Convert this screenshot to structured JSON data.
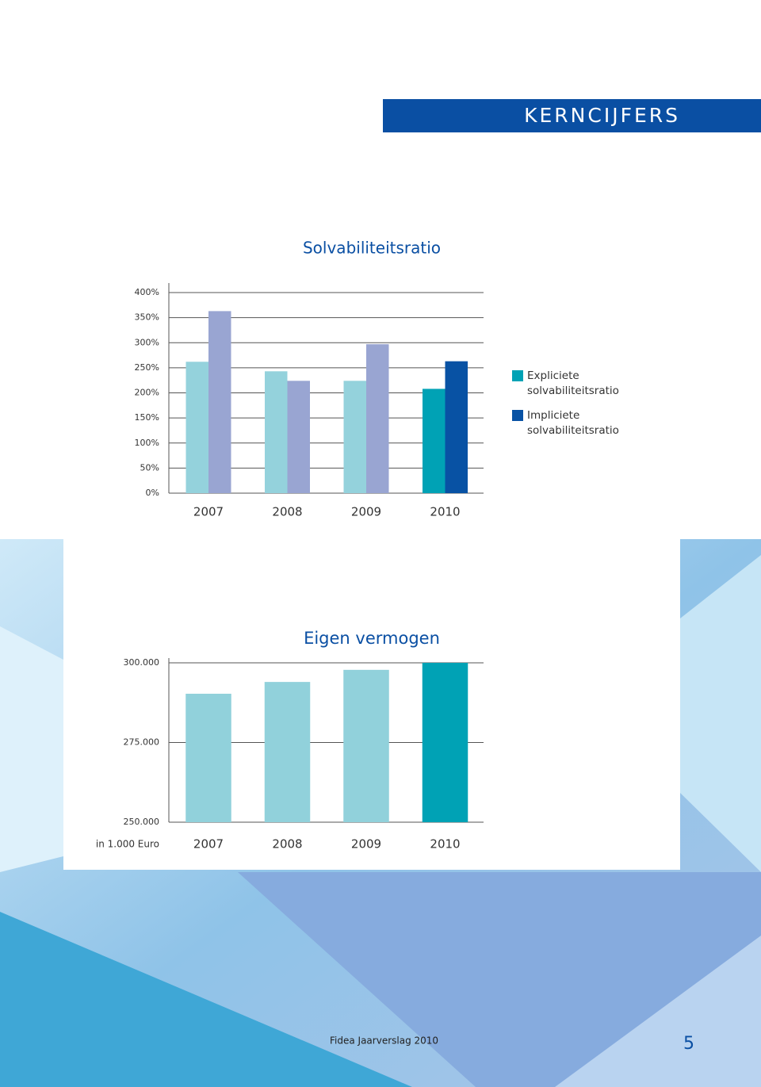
{
  "header": {
    "title": "KERNCIJFERS"
  },
  "chart_data": [
    {
      "type": "bar",
      "title": "Solvabiliteitsratio",
      "categories": [
        "2007",
        "2008",
        "2009",
        "2010"
      ],
      "series": [
        {
          "name": "Expliciete solvabiliteitsratio",
          "color": "#00a2b5",
          "colors": [
            "#94d2dc",
            "#94d2dc",
            "#94d2dc",
            "#00a2b5"
          ],
          "values": [
            262,
            243,
            224,
            208
          ]
        },
        {
          "name": "Impliciete solvabiliteitsratio",
          "color": "#0852a4",
          "colors": [
            "#99a5d2",
            "#99a5d2",
            "#99a5d2",
            "#0852a4"
          ],
          "values": [
            363,
            224,
            297,
            263
          ]
        }
      ],
      "ylim": [
        0,
        400
      ],
      "yticks": [
        {
          "value": 0,
          "label": "0%"
        },
        {
          "value": 50,
          "label": "50%"
        },
        {
          "value": 100,
          "label": "100%"
        },
        {
          "value": 150,
          "label": "150%"
        },
        {
          "value": 200,
          "label": "200%"
        },
        {
          "value": 250,
          "label": "250%"
        },
        {
          "value": 300,
          "label": "300%"
        },
        {
          "value": 350,
          "label": "350%"
        },
        {
          "value": 400,
          "label": "400%"
        }
      ],
      "grid": true,
      "legend": "right"
    },
    {
      "type": "bar",
      "title": "Eigen vermogen",
      "unit_label": "in 1.000 Euro",
      "categories": [
        "2007",
        "2008",
        "2009",
        "2010"
      ],
      "series": [
        {
          "colors": [
            "#91d1db",
            "#91d1db",
            "#91d1db",
            "#00a2b5"
          ],
          "values": [
            290300,
            294000,
            297800,
            300000
          ]
        }
      ],
      "ylim": [
        250000,
        300000
      ],
      "yticks": [
        {
          "value": 250000,
          "label": "250.000"
        },
        {
          "value": 275000,
          "label": "275.000"
        },
        {
          "value": 300000,
          "label": "300.000"
        }
      ],
      "grid": true
    }
  ],
  "footer": {
    "text": "Fidea Jaarverslag 2010",
    "page": "5"
  }
}
